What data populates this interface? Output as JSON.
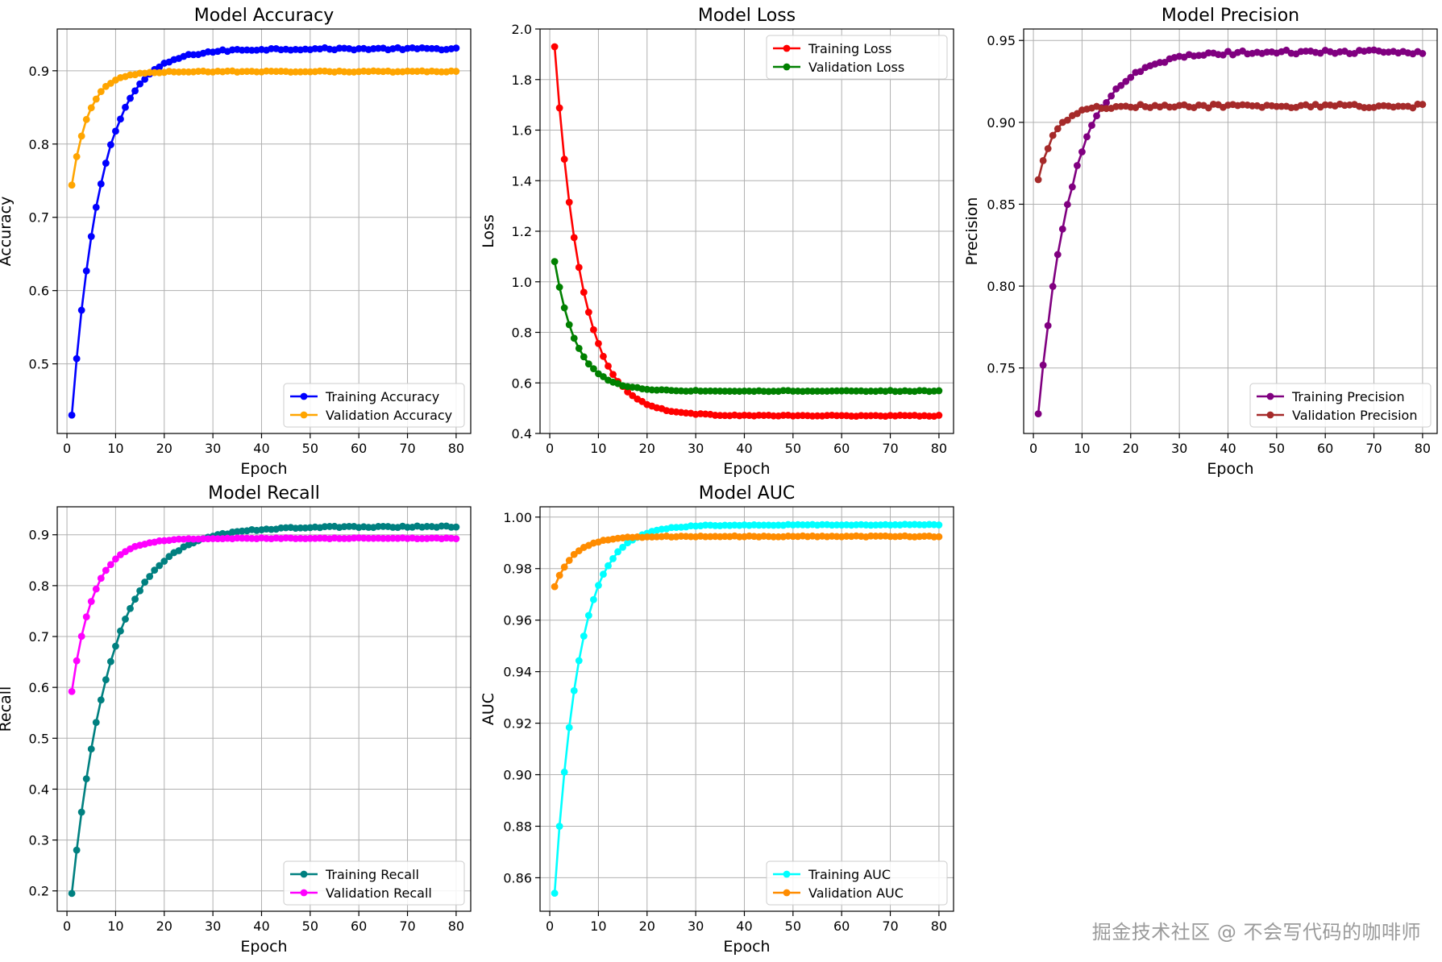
{
  "chart_data": [
    {
      "type": "line",
      "title": "Model Accuracy",
      "xlabel": "Epoch",
      "ylabel": "Accuracy",
      "xlim": [
        -2,
        83
      ],
      "ylim": [
        0.405,
        0.957
      ],
      "xticks": [
        0,
        10,
        20,
        30,
        40,
        50,
        60,
        70,
        80
      ],
      "yticks": [
        0.5,
        0.6,
        0.7,
        0.8,
        0.9
      ],
      "ytick_decimals": 1,
      "grid": true,
      "legend_position": "lower-right",
      "series": [
        {
          "name": "Training Accuracy",
          "color": "#0000ff",
          "start": 0.43,
          "end": 0.93,
          "tau": 6.0,
          "noise": 0.0015
        },
        {
          "name": "Validation Accuracy",
          "color": "#ffa500",
          "start": 0.744,
          "end": 0.899,
          "tau": 3.5,
          "noise": 0.0008
        }
      ]
    },
    {
      "type": "line",
      "title": "Model Loss",
      "xlabel": "Epoch",
      "ylabel": "Loss",
      "xlim": [
        -2,
        83
      ],
      "ylim": [
        0.4,
        2.0
      ],
      "xticks": [
        0,
        10,
        20,
        30,
        40,
        50,
        60,
        70,
        80
      ],
      "yticks": [
        0.4,
        0.6,
        0.8,
        1.0,
        1.2,
        1.4,
        1.6,
        1.8,
        2.0
      ],
      "ytick_decimals": 1,
      "grid": true,
      "legend_position": "upper-right",
      "series": [
        {
          "name": "Training Loss",
          "color": "#ff0000",
          "start": 1.93,
          "end": 0.47,
          "tau": 5.5,
          "noise": 0.002
        },
        {
          "name": "Validation Loss",
          "color": "#008000",
          "start": 1.08,
          "end": 0.568,
          "tau": 4.5,
          "noise": 0.002
        }
      ]
    },
    {
      "type": "line",
      "title": "Model Precision",
      "xlabel": "Epoch",
      "ylabel": "Precision",
      "xlim": [
        -2,
        83
      ],
      "ylim": [
        0.71,
        0.957
      ],
      "xticks": [
        0,
        10,
        20,
        30,
        40,
        50,
        60,
        70,
        80
      ],
      "yticks": [
        0.75,
        0.8,
        0.85,
        0.9,
        0.95
      ],
      "ytick_decimals": 2,
      "grid": true,
      "legend_position": "lower-right",
      "series": [
        {
          "name": "Training Precision",
          "color": "#800080",
          "start": 0.722,
          "end": 0.943,
          "tau": 7.0,
          "noise": 0.0012
        },
        {
          "name": "Validation Precision",
          "color": "#a52a2a",
          "start": 0.865,
          "end": 0.91,
          "tau": 3.5,
          "noise": 0.0012
        }
      ]
    },
    {
      "type": "line",
      "title": "Model Recall",
      "xlabel": "Epoch",
      "ylabel": "Recall",
      "xlim": [
        -2,
        83
      ],
      "ylim": [
        0.16,
        0.955
      ],
      "xticks": [
        0,
        10,
        20,
        30,
        40,
        50,
        60,
        70,
        80
      ],
      "yticks": [
        0.2,
        0.3,
        0.4,
        0.5,
        0.6,
        0.7,
        0.8,
        0.9
      ],
      "ytick_decimals": 1,
      "grid": true,
      "legend_position": "lower-right",
      "series": [
        {
          "name": "Training Recall",
          "color": "#008080",
          "start": 0.195,
          "end": 0.916,
          "tau": 8.0,
          "noise": 0.0015
        },
        {
          "name": "Validation Recall",
          "color": "#ff00ff",
          "start": 0.592,
          "end": 0.893,
          "tau": 4.5,
          "noise": 0.0008
        }
      ]
    },
    {
      "type": "line",
      "title": "Model AUC",
      "xlabel": "Epoch",
      "ylabel": "AUC",
      "xlim": [
        -2,
        83
      ],
      "ylim": [
        0.847,
        1.004
      ],
      "xticks": [
        0,
        10,
        20,
        30,
        40,
        50,
        60,
        70,
        80
      ],
      "yticks": [
        0.86,
        0.88,
        0.9,
        0.92,
        0.94,
        0.96,
        0.98,
        1.0
      ],
      "ytick_decimals": 2,
      "grid": true,
      "legend_position": "lower-right",
      "series": [
        {
          "name": "Training AUC",
          "color": "#00ffff",
          "start": 0.854,
          "end": 0.997,
          "tau": 5.0,
          "noise": 0.0002
        },
        {
          "name": "Validation AUC",
          "color": "#ff8c00",
          "start": 0.973,
          "end": 0.9925,
          "tau": 4.0,
          "noise": 0.0002
        }
      ]
    }
  ],
  "epochs": 80,
  "watermark": "掘金技术社区 @ 不会写代码的咖啡师"
}
